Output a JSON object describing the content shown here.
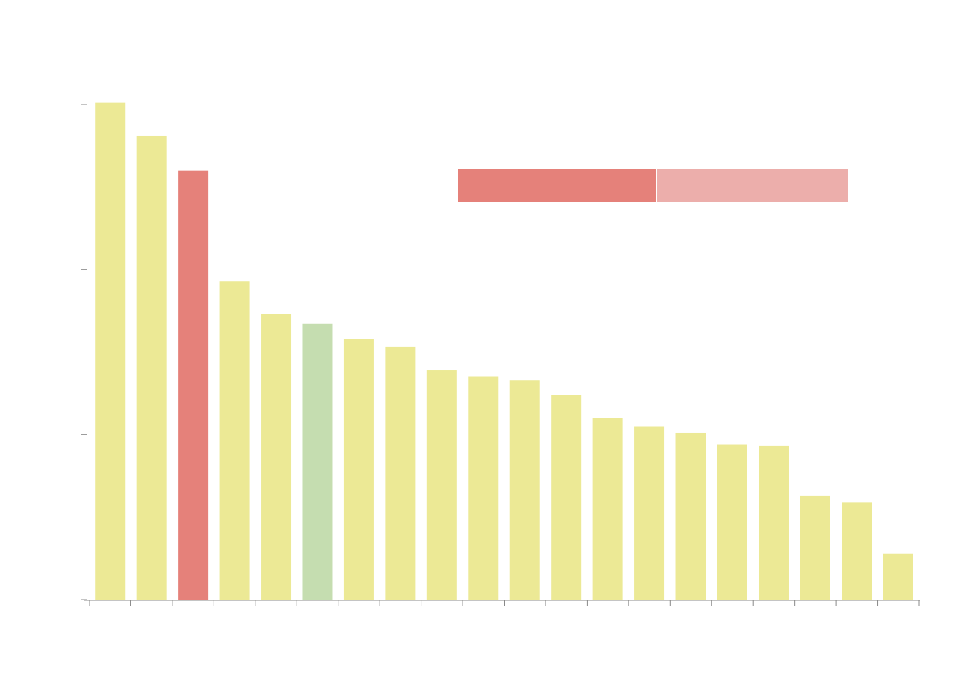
{
  "chart_data": {
    "type": "bar",
    "categories": [
      null,
      null,
      null,
      null,
      null,
      null,
      null,
      null,
      null,
      null,
      null,
      null,
      null,
      null,
      null,
      null,
      null,
      null,
      null,
      null
    ],
    "values": [
      3.01,
      2.81,
      2.6,
      1.93,
      1.73,
      1.67,
      1.58,
      1.53,
      1.39,
      1.35,
      1.33,
      1.24,
      1.1,
      1.05,
      1.01,
      0.94,
      0.93,
      0.63,
      0.59,
      0.28
    ],
    "colors": [
      "#ece995",
      "#ece995",
      "#e5817a",
      "#ece995",
      "#ece995",
      "#c5ddb0",
      "#ece995",
      "#ece995",
      "#ece995",
      "#ece995",
      "#ece995",
      "#ece995",
      "#ece995",
      "#ece995",
      "#ece995",
      "#ece995",
      "#ece995",
      "#ece995",
      "#ece995",
      "#ece995"
    ],
    "ylim": [
      0,
      3
    ],
    "yticks": [
      0,
      1,
      2,
      3
    ]
  }
}
